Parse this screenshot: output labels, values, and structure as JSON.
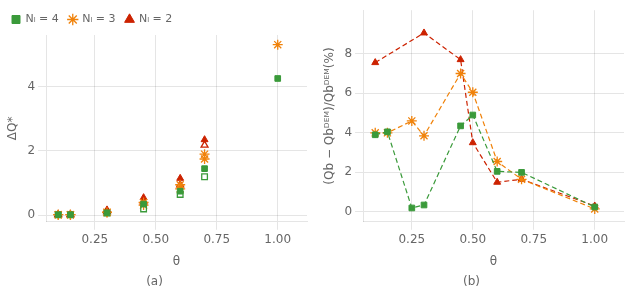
{
  "chart_data": [
    {
      "type": "scatter",
      "title": "(a)",
      "x_label": "θ",
      "y_label": "ΔQ*",
      "x": [
        0.1,
        0.15,
        0.3,
        0.45,
        0.6,
        0.7,
        1.0
      ],
      "series": [
        {
          "name": "Nₗ = 4",
          "color": "#3a9a3a",
          "marker": "square",
          "values": [
            0.02,
            0.02,
            0.08,
            0.35,
            0.75,
            1.45,
            4.25
          ]
        },
        {
          "name": "Nₗ = 3",
          "color": "#f0820a",
          "marker": "star",
          "values": [
            0.02,
            0.02,
            0.1,
            0.4,
            0.95,
            1.9,
            5.3
          ]
        },
        {
          "name": "Nₗ = 2",
          "color": "#cc2200",
          "marker": "triangle",
          "values": [
            0.02,
            0.02,
            0.17,
            0.55,
            1.15,
            2.35,
            null
          ]
        },
        {
          "color": "#3a9a3a",
          "marker": "square_open",
          "values": [
            0.02,
            0.02,
            0.07,
            0.2,
            0.65,
            1.2,
            null
          ]
        },
        {
          "color": "#f0820a",
          "marker": "star_open",
          "values": [
            0.02,
            0.02,
            0.09,
            0.32,
            0.82,
            1.75,
            null
          ]
        },
        {
          "color": "#cc2200",
          "marker": "triangle_open",
          "values": [
            0.02,
            0.02,
            0.12,
            0.42,
            0.95,
            2.18,
            null
          ]
        }
      ],
      "xlim": [
        0.05,
        1.12
      ],
      "ylim": [
        -0.2,
        5.6
      ],
      "xticks": [
        0.25,
        {
          "value": 0.5,
          "label": "0.50"
        },
        0.75,
        {
          "value": 1.0,
          "label": "1.00"
        }
      ],
      "yticks": [
        0,
        2,
        4
      ],
      "grid": true,
      "legend": "upper left"
    },
    {
      "type": "line",
      "title": "(b)",
      "x_label": "θ",
      "y_label": "(Qb − Qbᴰᴱᴹ)/Qbᴰᴱᴹ(%)",
      "x": [
        0.1,
        0.15,
        0.25,
        0.3,
        0.45,
        0.5,
        0.6,
        0.7,
        1.0
      ],
      "series": [
        {
          "color": "#3a9a3a",
          "marker": "square",
          "line_style": "dashed",
          "values": [
            3.9,
            4.05,
            0.2,
            0.35,
            4.35,
            4.9,
            2.05,
            2.0,
            0.25
          ]
        },
        {
          "color": "#f0820a",
          "marker": "star",
          "line_style": "dashed",
          "values": [
            4.0,
            4.0,
            4.6,
            3.85,
            7.0,
            6.05,
            2.55,
            1.65,
            0.15
          ]
        },
        {
          "color": "#cc2200",
          "marker": "triangle",
          "line_style": "dashed",
          "values": [
            7.55,
            null,
            null,
            9.05,
            7.7,
            3.5,
            1.5,
            1.65,
            0.3
          ]
        }
      ],
      "xlim": [
        0.05,
        1.12
      ],
      "ylim": [
        -0.5,
        10.2
      ],
      "xticks": [
        0.25,
        {
          "value": 0.5,
          "label": "0.50"
        },
        0.75,
        {
          "value": 1.0,
          "label": "1.00"
        }
      ],
      "yticks": [
        0,
        2,
        4,
        6,
        8
      ],
      "grid": true
    }
  ]
}
